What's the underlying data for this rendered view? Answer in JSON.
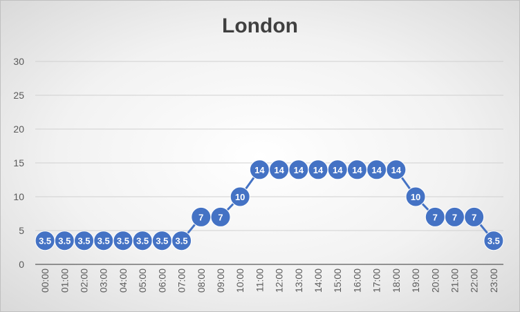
{
  "chart_data": {
    "type": "line",
    "title": "London",
    "xlabel": "",
    "ylabel": "",
    "categories": [
      "00:00",
      "01:00",
      "02:00",
      "03:00",
      "04:00",
      "05:00",
      "06:00",
      "07:00",
      "08:00",
      "09:00",
      "10:00",
      "11:00",
      "12:00",
      "13:00",
      "14:00",
      "15:00",
      "16:00",
      "17:00",
      "18:00",
      "19:00",
      "20:00",
      "21:00",
      "22:00",
      "23:00"
    ],
    "series": [
      {
        "values": [
          3.5,
          3.5,
          3.5,
          3.5,
          3.5,
          3.5,
          3.5,
          3.5,
          7,
          7,
          10,
          14,
          14,
          14,
          14,
          14,
          14,
          14,
          14,
          10,
          7,
          7,
          7,
          3.5
        ],
        "color": "#4472c4"
      }
    ],
    "ylim": [
      0,
      30
    ],
    "yticks": [
      0,
      5,
      10,
      15,
      20,
      25,
      30
    ],
    "grid": true,
    "legend": "none",
    "data_labels": true
  }
}
